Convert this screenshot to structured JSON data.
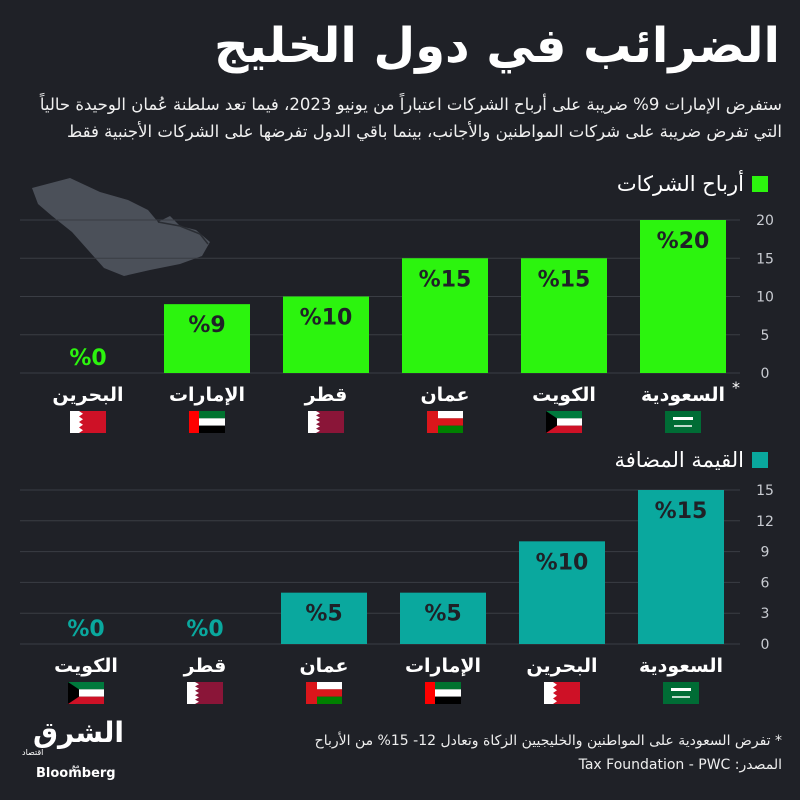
{
  "title": "الضرائب في دول الخليج",
  "subtitle": [
    "ستفرض الإمارات 9% ضريبة على أرباح الشركات اعتباراً من يونيو 2023، فيما تعد سلطنة عُمان الوحيدة حالياً",
    "التي تفرض ضريبة على شركات المواطنين والأجانب، بينما باقي الدول تفرضها على الشركات الأجنبية فقط"
  ],
  "colors": {
    "background": "#1f2127",
    "corporate": "#2cf40e",
    "vat": "#0aa89e",
    "grid": "#3a3d44"
  },
  "footnote": "* تفرض السعودية على المواطنين والخليجيين الزكاة وتعادل 12- 15% من الأرباح",
  "source": "المصدر: Tax Foundation - PWC",
  "logo": {
    "name": "الشرق",
    "tag": "اقتصاد",
    "with": "مع",
    "partner": "Bloomberg"
  },
  "chart_data": [
    {
      "type": "bar",
      "legend": "أرباح الشركات",
      "categories": [
        "السعودية",
        "الكويت",
        "عمان",
        "قطر",
        "الإمارات",
        "البحرين"
      ],
      "flags": [
        "saudi-flag",
        "kuwait-flag",
        "oman-flag",
        "qatar-flag",
        "uae-flag",
        "bahrain-flag"
      ],
      "values": [
        20,
        15,
        15,
        10,
        9,
        0
      ],
      "labels": [
        "%20",
        "%15",
        "%15",
        "%10",
        "%9",
        "%0"
      ],
      "asterisk": "*",
      "yticks": [
        0,
        5,
        10,
        15,
        20
      ],
      "ylim": [
        0,
        20
      ]
    },
    {
      "type": "bar",
      "legend": "القيمة المضافة",
      "categories": [
        "السعودية",
        "البحرين",
        "الإمارات",
        "عمان",
        "قطر",
        "الكويت"
      ],
      "flags": [
        "saudi-flag",
        "bahrain-flag",
        "uae-flag",
        "oman-flag",
        "qatar-flag",
        "kuwait-flag"
      ],
      "values": [
        15,
        10,
        5,
        5,
        0,
        0
      ],
      "labels": [
        "%15",
        "%10",
        "%5",
        "%5",
        "%0",
        "%0"
      ],
      "yticks": [
        0,
        3,
        6,
        9,
        12,
        15
      ],
      "ylim": [
        0,
        15
      ]
    }
  ]
}
